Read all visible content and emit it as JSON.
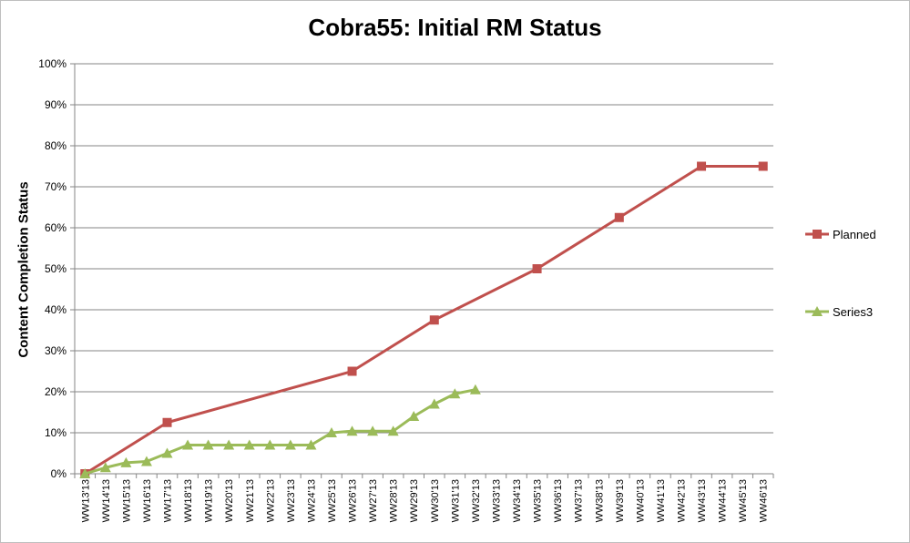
{
  "chart_data": {
    "type": "line",
    "title": "Cobra55: Initial RM Status",
    "ylabel": "Content Completion Status",
    "xlabel": "",
    "ylim": [
      0,
      100
    ],
    "yticks": [
      "0%",
      "10%",
      "20%",
      "30%",
      "40%",
      "50%",
      "60%",
      "70%",
      "80%",
      "90%",
      "100%"
    ],
    "categories": [
      "WW13'13",
      "WW14'13",
      "WW15'13",
      "WW16'13",
      "WW17'13",
      "WW18'13",
      "WW19'13",
      "WW20'13",
      "WW21'13",
      "WW22'13",
      "WW23'13",
      "WW24'13",
      "WW25'13",
      "WW26'13",
      "WW27'13",
      "WW28'13",
      "WW29'13",
      "WW30'13",
      "WW31'13",
      "WW32'13",
      "WW33'13",
      "WW34'13",
      "WW35'13",
      "WW36'13",
      "WW37'13",
      "WW38'13",
      "WW39'13",
      "WW40'13",
      "WW41'13",
      "WW42'13",
      "WW43'13",
      "WW44'13",
      "WW45'13",
      "WW46'13"
    ],
    "grid": true,
    "legend_position": "right",
    "series": [
      {
        "name": "Planned",
        "color": "#c0504d",
        "marker": "square",
        "values": [
          0,
          null,
          null,
          null,
          12.5,
          null,
          null,
          null,
          null,
          null,
          null,
          null,
          null,
          25,
          null,
          null,
          null,
          37.5,
          null,
          null,
          null,
          null,
          50,
          null,
          null,
          null,
          62.5,
          null,
          null,
          null,
          75,
          null,
          null,
          75
        ]
      },
      {
        "name": "Series3",
        "color": "#9bbb59",
        "marker": "triangle",
        "values": [
          0,
          1.5,
          2.7,
          3,
          5,
          7,
          7,
          7,
          7,
          7,
          7,
          7,
          10,
          10.4,
          10.4,
          10.4,
          14,
          17,
          19.5,
          20.5,
          null,
          null,
          null,
          null,
          null,
          null,
          null,
          null,
          null,
          null,
          null,
          null,
          null,
          null
        ]
      }
    ]
  }
}
